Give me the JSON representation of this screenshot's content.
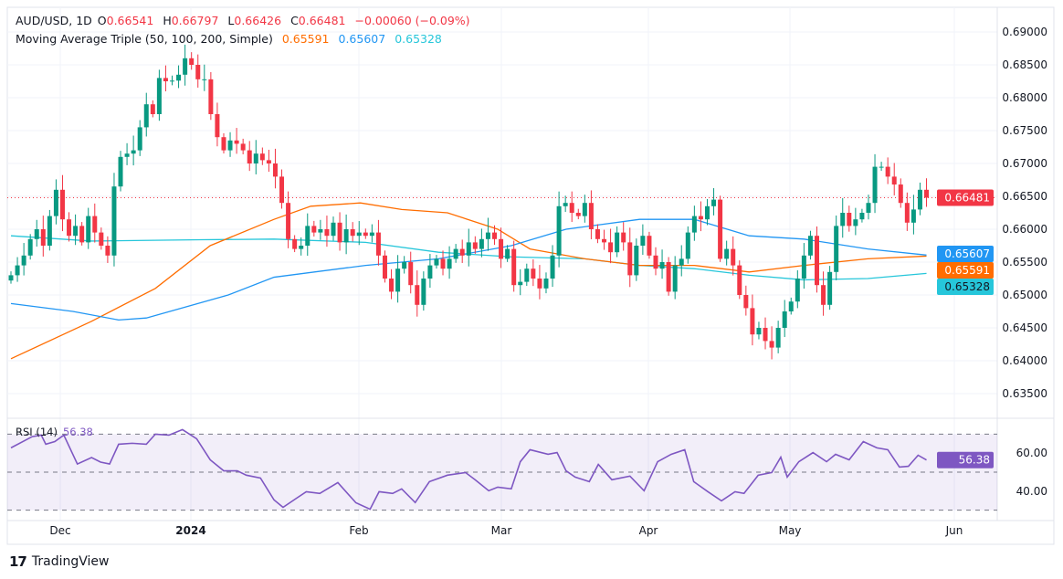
{
  "header": {
    "symbol": "AUD/USD, 1D",
    "open_label": "O",
    "open": "0.66541",
    "high_label": "H",
    "high": "0.66797",
    "low_label": "L",
    "low": "0.66426",
    "close_label": "C",
    "close": "0.66481",
    "change": "−0.00060 (−0.09%)"
  },
  "indicator": {
    "name": "Moving Average Triple (50, 100, 200, Simple)",
    "ma50": "0.65591",
    "ma100": "0.65607",
    "ma200": "0.65328"
  },
  "rsi_legend": {
    "name": "RSI (14)",
    "value": "56.38"
  },
  "badges": {
    "last": "0.66481",
    "ma100": "0.65607",
    "ma50": "0.65591",
    "ma200": "0.65328",
    "rsi": "56.38"
  },
  "colors": {
    "up": "#089981",
    "down": "#f23645",
    "ma50": "#ff6d00",
    "ma100": "#2196f3",
    "ma200": "#26c6da",
    "rsi": "#7e57c2"
  },
  "brand": "TradingView",
  "chart_data": {
    "type": "candlestick",
    "price_axis": {
      "ticks": [
        "0.69000",
        "0.68500",
        "0.68000",
        "0.67500",
        "0.67000",
        "0.66500",
        "0.66000",
        "0.65500",
        "0.65000",
        "0.64500",
        "0.64000",
        "0.63500"
      ],
      "range": [
        0.632,
        0.692
      ]
    },
    "time_axis": {
      "labels": [
        "Dec",
        "2024",
        "Feb",
        "Mar",
        "Apr",
        "May",
        "Jun"
      ]
    },
    "close": [
      0.653,
      0.6545,
      0.656,
      0.6585,
      0.66,
      0.6575,
      0.662,
      0.666,
      0.6615,
      0.659,
      0.6605,
      0.658,
      0.662,
      0.6595,
      0.6575,
      0.656,
      0.6665,
      0.671,
      0.6715,
      0.672,
      0.6755,
      0.679,
      0.6775,
      0.683,
      0.6825,
      0.6826,
      0.6835,
      0.686,
      0.685,
      0.6828,
      0.6828,
      0.6775,
      0.674,
      0.672,
      0.6735,
      0.673,
      0.672,
      0.67,
      0.6715,
      0.6705,
      0.67,
      0.668,
      0.664,
      0.6585,
      0.657,
      0.6575,
      0.6605,
      0.6595,
      0.66,
      0.659,
      0.661,
      0.658,
      0.66,
      0.659,
      0.6595,
      0.659,
      0.6595,
      0.656,
      0.6525,
      0.6505,
      0.654,
      0.655,
      0.6515,
      0.6485,
      0.6525,
      0.6545,
      0.6555,
      0.654,
      0.6555,
      0.657,
      0.656,
      0.658,
      0.657,
      0.6585,
      0.6595,
      0.6585,
      0.6555,
      0.657,
      0.6515,
      0.652,
      0.654,
      0.6525,
      0.651,
      0.6525,
      0.656,
      0.6635,
      0.664,
      0.6625,
      0.662,
      0.664,
      0.66,
      0.6585,
      0.658,
      0.6565,
      0.6595,
      0.658,
      0.653,
      0.6575,
      0.659,
      0.656,
      0.654,
      0.655,
      0.6505,
      0.6545,
      0.6555,
      0.6595,
      0.662,
      0.6615,
      0.6635,
      0.6645,
      0.6555,
      0.657,
      0.6545,
      0.65,
      0.648,
      0.644,
      0.645,
      0.643,
      0.642,
      0.645,
      0.6475,
      0.649,
      0.6525,
      0.656,
      0.659,
      0.6515,
      0.6485,
      0.6535,
      0.6605,
      0.6625,
      0.6605,
      0.6615,
      0.6625,
      0.664,
      0.6695,
      0.6695,
      0.668,
      0.6668,
      0.664,
      0.661,
      0.663,
      0.666,
      0.6648
    ],
    "moving_averages": {
      "ma50": [
        [
          0,
          0.6403
        ],
        [
          12.5,
          0.646
        ],
        [
          22.4,
          0.651
        ],
        [
          30.9,
          0.6575
        ],
        [
          40.8,
          0.6615
        ],
        [
          46.5,
          0.6635
        ],
        [
          54.2,
          0.664
        ],
        [
          60.6,
          0.663
        ],
        [
          67.7,
          0.6625
        ],
        [
          75.5,
          0.66
        ],
        [
          80.5,
          0.657
        ],
        [
          89,
          0.6555
        ],
        [
          97.5,
          0.6545
        ],
        [
          106,
          0.6545
        ],
        [
          114.5,
          0.6535
        ],
        [
          123,
          0.6545
        ],
        [
          132.9,
          0.6555
        ],
        [
          142,
          0.65591
        ]
      ],
      "ma100": [
        [
          0,
          0.6487
        ],
        [
          9.6,
          0.6475
        ],
        [
          16.7,
          0.6462
        ],
        [
          21,
          0.6465
        ],
        [
          33.7,
          0.65
        ],
        [
          40.8,
          0.6527
        ],
        [
          55,
          0.6545
        ],
        [
          66.3,
          0.6555
        ],
        [
          77.6,
          0.6575
        ],
        [
          86.1,
          0.66
        ],
        [
          97.5,
          0.6615
        ],
        [
          106,
          0.6615
        ],
        [
          114.5,
          0.659
        ],
        [
          123,
          0.6585
        ],
        [
          132.9,
          0.657
        ],
        [
          142,
          0.65607
        ]
      ],
      "ma200": [
        [
          0,
          0.659
        ],
        [
          12.5,
          0.6582
        ],
        [
          29.5,
          0.6584
        ],
        [
          40.8,
          0.6585
        ],
        [
          55,
          0.658
        ],
        [
          66.3,
          0.6565
        ],
        [
          77.6,
          0.6558
        ],
        [
          89,
          0.6555
        ],
        [
          97.5,
          0.6545
        ],
        [
          106,
          0.654
        ],
        [
          114.5,
          0.653
        ],
        [
          123,
          0.6523
        ],
        [
          132.9,
          0.6525
        ],
        [
          142,
          0.65328
        ]
      ]
    },
    "rsi": {
      "levels": [
        70,
        50,
        30
      ],
      "ticks": [
        "60.00",
        "40.00"
      ],
      "values": [
        [
          0,
          62.8
        ],
        [
          3.3,
          68.7
        ],
        [
          4.7,
          69.5
        ],
        [
          5.4,
          64.7
        ],
        [
          6.8,
          66.1
        ],
        [
          8.2,
          69.5
        ],
        [
          10.3,
          54.3
        ],
        [
          12.5,
          57.7
        ],
        [
          13.9,
          55.3
        ],
        [
          15.3,
          54.3
        ],
        [
          16.7,
          64.7
        ],
        [
          18.8,
          65.2
        ],
        [
          21,
          64.7
        ],
        [
          22.4,
          70
        ],
        [
          24.5,
          69.5
        ],
        [
          26.6,
          72.4
        ],
        [
          28.8,
          67.6
        ],
        [
          30.9,
          56.5
        ],
        [
          33,
          50.7
        ],
        [
          35.1,
          50.7
        ],
        [
          36.5,
          48.4
        ],
        [
          38.7,
          46.9
        ],
        [
          40.8,
          35.4
        ],
        [
          42.2,
          31.5
        ],
        [
          44.3,
          36.3
        ],
        [
          45.8,
          39.7
        ],
        [
          47.9,
          38.8
        ],
        [
          50.7,
          44.5
        ],
        [
          53.5,
          33.9
        ],
        [
          55.7,
          30.5
        ],
        [
          57.1,
          39.7
        ],
        [
          59.2,
          38.8
        ],
        [
          60.6,
          41.2
        ],
        [
          62.7,
          34
        ],
        [
          64.9,
          45
        ],
        [
          67.7,
          48.4
        ],
        [
          70.5,
          49.8
        ],
        [
          72,
          46
        ],
        [
          74.1,
          40.2
        ],
        [
          75.5,
          42.1
        ],
        [
          77.6,
          41.2
        ],
        [
          79,
          55.5
        ],
        [
          80.5,
          61.8
        ],
        [
          83.3,
          59.4
        ],
        [
          84.7,
          60.3
        ],
        [
          86.1,
          50.7
        ],
        [
          87.5,
          47.4
        ],
        [
          89.7,
          45
        ],
        [
          91.1,
          54.1
        ],
        [
          93.2,
          46
        ],
        [
          96,
          47.9
        ],
        [
          98.2,
          40.2
        ],
        [
          100.3,
          55.5
        ],
        [
          102.4,
          59.4
        ],
        [
          104.5,
          61.8
        ],
        [
          105.9,
          45
        ],
        [
          108.1,
          39.7
        ],
        [
          110.2,
          34.9
        ],
        [
          112.3,
          39.7
        ],
        [
          113.7,
          38.8
        ],
        [
          115.9,
          48.4
        ],
        [
          118,
          49.8
        ],
        [
          119.4,
          57.9
        ],
        [
          120.4,
          47.4
        ],
        [
          122.2,
          55.5
        ],
        [
          124.4,
          60.3
        ],
        [
          126.5,
          55.5
        ],
        [
          127.9,
          59.4
        ],
        [
          130,
          56.5
        ],
        [
          132.2,
          66.1
        ],
        [
          134.3,
          62.8
        ],
        [
          136,
          61.8
        ],
        [
          137.8,
          52.7
        ],
        [
          139.2,
          53.1
        ],
        [
          140.7,
          58.9
        ],
        [
          142,
          56.38
        ]
      ]
    }
  }
}
